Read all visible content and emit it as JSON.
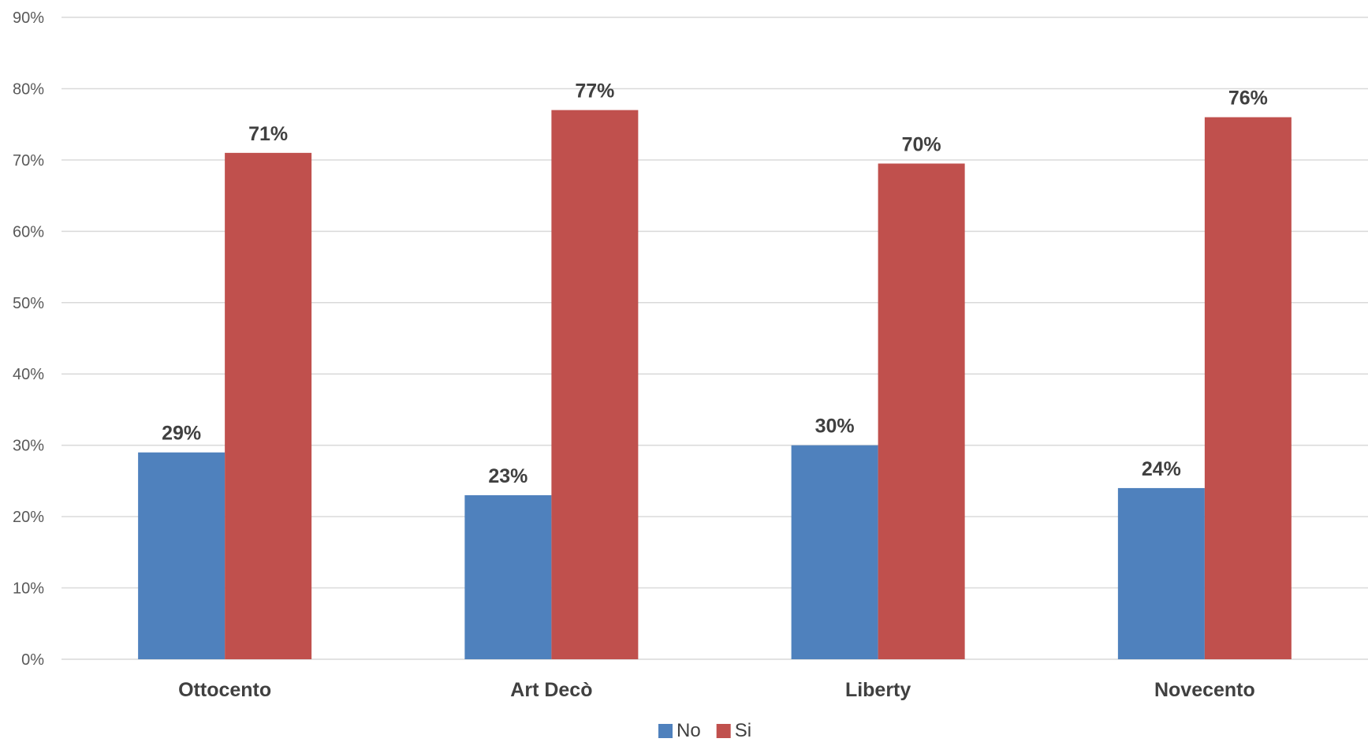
{
  "chart_data": {
    "type": "bar",
    "title": "",
    "xlabel": "",
    "ylabel": "",
    "categories": [
      "Ottocento",
      "Art Decò",
      "Liberty",
      "Novecento"
    ],
    "series": [
      {
        "name": "No",
        "color": "#4f81bd",
        "values": [
          29,
          23,
          30,
          24
        ],
        "labels": [
          "29%",
          "23%",
          "30%",
          "24%"
        ]
      },
      {
        "name": "Si",
        "color": "#c0504d",
        "values": [
          71,
          77,
          69.5,
          76
        ],
        "labels": [
          "71%",
          "77%",
          "70%",
          "76%"
        ]
      }
    ],
    "ylim": [
      0,
      90
    ],
    "y_ticks": [
      0,
      10,
      20,
      30,
      40,
      50,
      60,
      70,
      80,
      90
    ],
    "y_tick_labels": [
      "0%",
      "10%",
      "20%",
      "30%",
      "40%",
      "50%",
      "60%",
      "70%",
      "80%",
      "90%"
    ],
    "grid": true,
    "legend_position": "bottom"
  }
}
